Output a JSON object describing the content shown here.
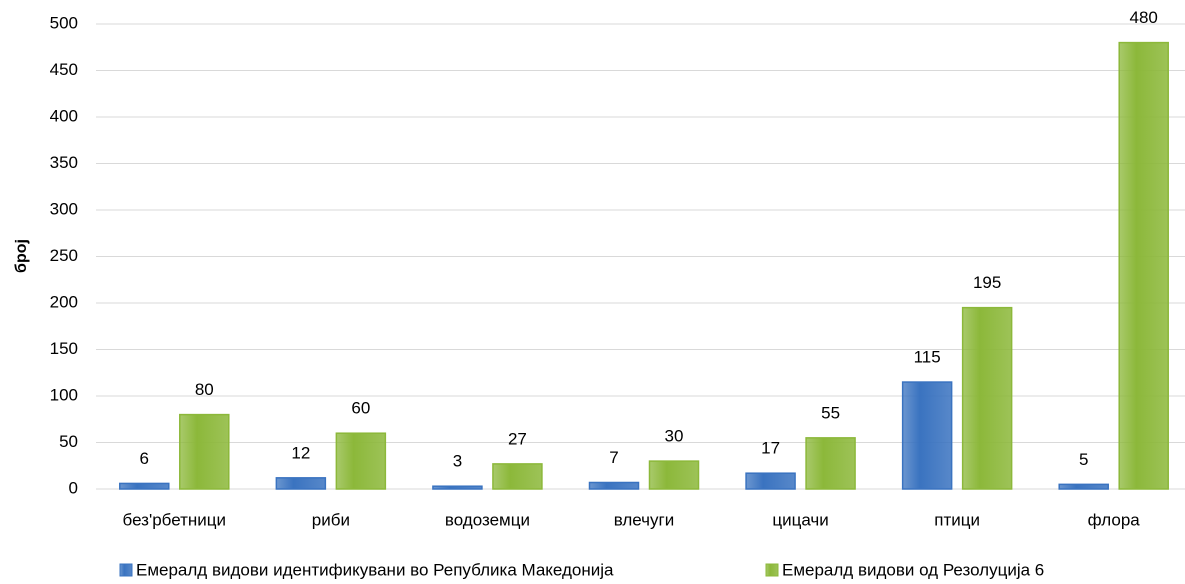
{
  "chart_data": {
    "type": "bar",
    "y_label": "број",
    "categories": [
      "без'рбетници",
      "риби",
      "водоземци",
      "влечуги",
      "цицачи",
      "птици",
      "флора"
    ],
    "series": [
      {
        "name": "Емералд видови идентификувани во Република Македонија",
        "color": "#3a73c0",
        "values": [
          6,
          12,
          3,
          7,
          17,
          115,
          5
        ]
      },
      {
        "name": "Емералд видови од Резолуција 6",
        "color": "#8cb83a",
        "values": [
          80,
          60,
          27,
          30,
          55,
          195,
          480
        ]
      }
    ],
    "ylim": [
      0,
      500
    ],
    "yticks": [
      0,
      50,
      100,
      150,
      200,
      250,
      300,
      350,
      400,
      450,
      500
    ],
    "grid": true,
    "legend": "bottom"
  }
}
